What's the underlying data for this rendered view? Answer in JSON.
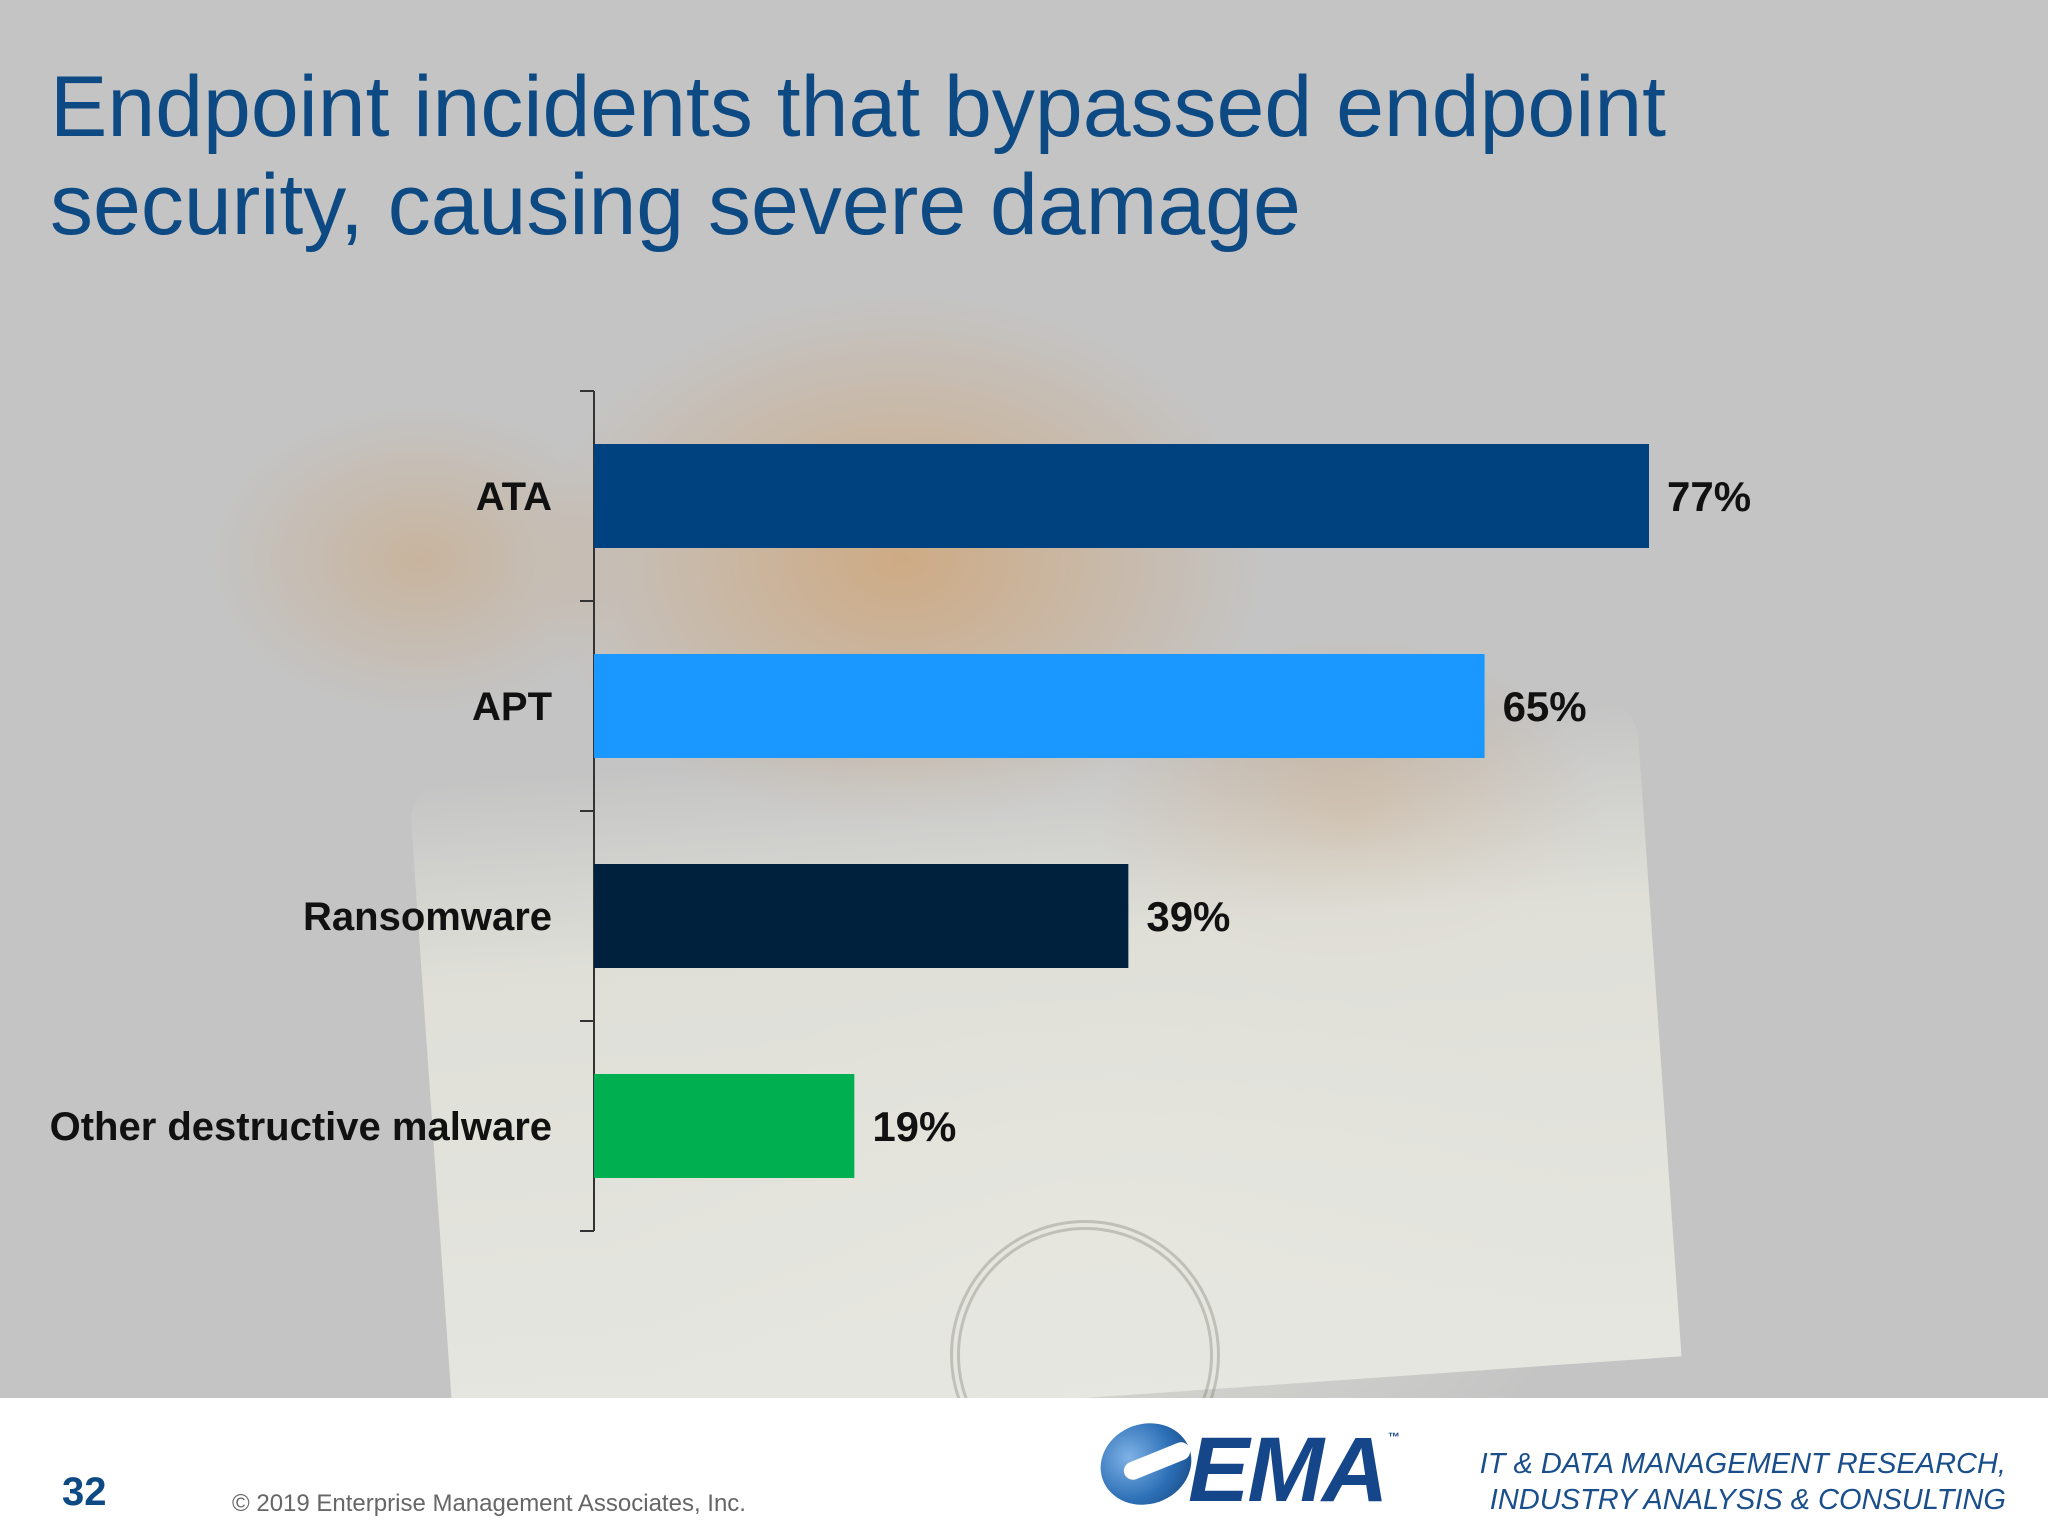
{
  "slide": {
    "title": "Endpoint incidents that bypassed endpoint security, causing severe damage",
    "page_number": "32",
    "copyright": "© 2019 Enterprise Management Associates, Inc.",
    "logo_text": "EMA",
    "logo_tm": "™",
    "tagline_line1": "IT & DATA MANAGEMENT RESEARCH,",
    "tagline_line2": "INDUSTRY ANALYSIS & CONSULTING"
  },
  "chart_data": {
    "type": "bar",
    "orientation": "horizontal",
    "title": "",
    "xlabel": "",
    "ylabel": "",
    "categories": [
      "ATA",
      "APT",
      "Ransomware",
      "Other destructive malware"
    ],
    "values": [
      77,
      65,
      39,
      19
    ],
    "value_labels": [
      "77%",
      "65%",
      "39%",
      "19%"
    ],
    "colors": [
      "#00427f",
      "#1a98ff",
      "#00213e",
      "#00b050"
    ],
    "xlim": [
      0,
      100
    ],
    "grid": false,
    "legend": "none"
  }
}
